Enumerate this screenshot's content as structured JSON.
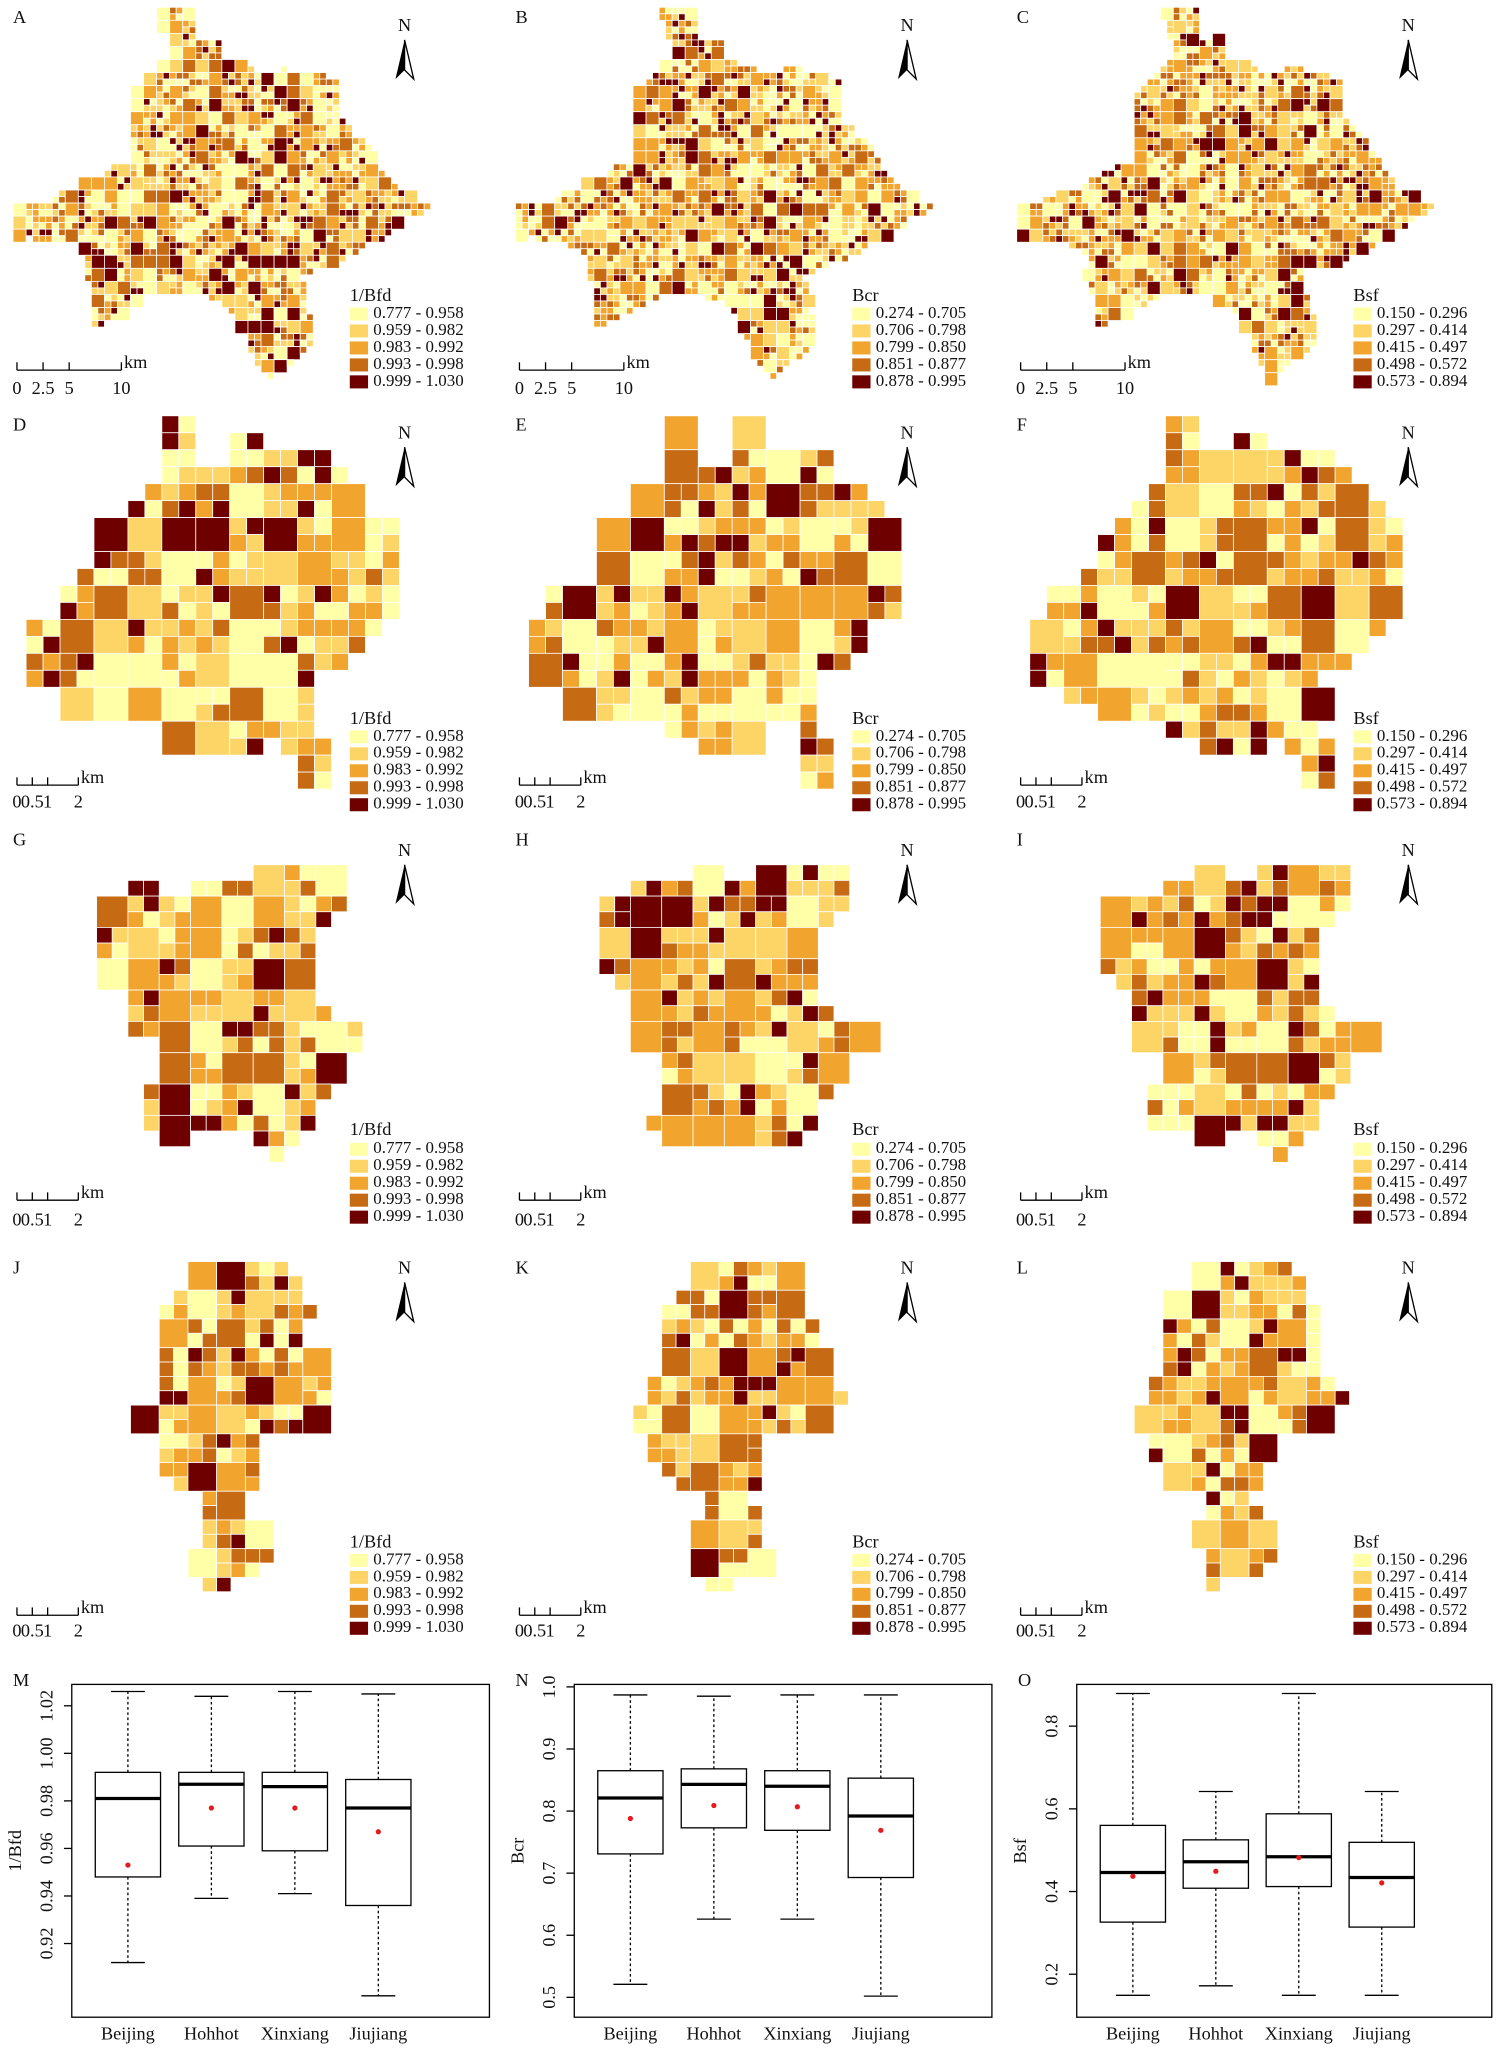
{
  "chart_data": [
    {
      "type": "map",
      "panel": "A",
      "north": "N",
      "legend_title": "1/Bfd",
      "legend_labels": [
        "0.777 - 0.958",
        "0.959 - 0.982",
        "0.983 - 0.992",
        "0.993 - 0.998",
        "0.999 - 1.030"
      ],
      "colors": [
        "#ffffa8",
        "#fdd466",
        "#f2a52e",
        "#c66a14",
        "#6e0000"
      ],
      "scale_ticks": [
        0,
        2.5,
        5,
        10
      ],
      "scale_unit": "km"
    },
    {
      "type": "map",
      "panel": "B",
      "north": "N",
      "legend_title": "Bcr",
      "legend_labels": [
        "0.274 - 0.705",
        "0.706 - 0.798",
        "0.799 - 0.850",
        "0.851 - 0.877",
        "0.878 - 0.995"
      ],
      "colors": [
        "#ffffa8",
        "#fdd466",
        "#f2a52e",
        "#c66a14",
        "#6e0000"
      ],
      "scale_ticks": [
        0,
        2.5,
        5,
        10
      ],
      "scale_unit": "km"
    },
    {
      "type": "map",
      "panel": "C",
      "north": "N",
      "legend_title": "Bsf",
      "legend_labels": [
        "0.150 - 0.296",
        "0.297 - 0.414",
        "0.415 - 0.497",
        "0.498 - 0.572",
        "0.573 - 0.894"
      ],
      "colors": [
        "#ffffa8",
        "#fdd466",
        "#f2a52e",
        "#c66a14",
        "#6e0000"
      ],
      "scale_ticks": [
        0,
        2.5,
        5,
        10
      ],
      "scale_unit": "km"
    },
    {
      "type": "map",
      "panel": "D",
      "north": "N",
      "legend_title": "1/Bfd",
      "legend_labels": [
        "0.777 - 0.958",
        "0.959 - 0.982",
        "0.983 - 0.992",
        "0.993 - 0.998",
        "0.999 - 1.030"
      ],
      "colors": [
        "#ffffa8",
        "#fdd466",
        "#f2a52e",
        "#c66a14",
        "#6e0000"
      ],
      "scale_ticks": [
        0,
        0.5,
        1,
        2
      ],
      "scale_unit": "km"
    },
    {
      "type": "map",
      "panel": "E",
      "north": "N",
      "legend_title": "Bcr",
      "legend_labels": [
        "0.274 - 0.705",
        "0.706 - 0.798",
        "0.799 - 0.850",
        "0.851 - 0.877",
        "0.878 - 0.995"
      ],
      "colors": [
        "#ffffa8",
        "#fdd466",
        "#f2a52e",
        "#c66a14",
        "#6e0000"
      ],
      "scale_ticks": [
        0,
        0.5,
        1,
        2
      ],
      "scale_unit": "km"
    },
    {
      "type": "map",
      "panel": "F",
      "north": "N",
      "legend_title": "Bsf",
      "legend_labels": [
        "0.150 - 0.296",
        "0.297 - 0.414",
        "0.415 - 0.497",
        "0.498 - 0.572",
        "0.573 - 0.894"
      ],
      "colors": [
        "#ffffa8",
        "#fdd466",
        "#f2a52e",
        "#c66a14",
        "#6e0000"
      ],
      "scale_ticks": [
        0,
        0.5,
        1,
        2
      ],
      "scale_unit": "km"
    },
    {
      "type": "map",
      "panel": "G",
      "north": "N",
      "legend_title": "1/Bfd",
      "legend_labels": [
        "0.777 - 0.958",
        "0.959 - 0.982",
        "0.983 - 0.992",
        "0.993 - 0.998",
        "0.999 - 1.030"
      ],
      "colors": [
        "#ffffa8",
        "#fdd466",
        "#f2a52e",
        "#c66a14",
        "#6e0000"
      ],
      "scale_ticks": [
        0,
        0.5,
        1,
        2
      ],
      "scale_unit": "km"
    },
    {
      "type": "map",
      "panel": "H",
      "north": "N",
      "legend_title": "Bcr",
      "legend_labels": [
        "0.274 - 0.705",
        "0.706 - 0.798",
        "0.799 - 0.850",
        "0.851 - 0.877",
        "0.878 - 0.995"
      ],
      "colors": [
        "#ffffa8",
        "#fdd466",
        "#f2a52e",
        "#c66a14",
        "#6e0000"
      ],
      "scale_ticks": [
        0,
        0.5,
        1,
        2
      ],
      "scale_unit": "km"
    },
    {
      "type": "map",
      "panel": "I",
      "north": "N",
      "legend_title": "Bsf",
      "legend_labels": [
        "0.150 - 0.296",
        "0.297 - 0.414",
        "0.415 - 0.497",
        "0.498 - 0.572",
        "0.573 - 0.894"
      ],
      "colors": [
        "#ffffa8",
        "#fdd466",
        "#f2a52e",
        "#c66a14",
        "#6e0000"
      ],
      "scale_ticks": [
        0,
        0.5,
        1,
        2
      ],
      "scale_unit": "km"
    },
    {
      "type": "map",
      "panel": "J",
      "north": "N",
      "legend_title": "1/Bfd",
      "legend_labels": [
        "0.777 - 0.958",
        "0.959 - 0.982",
        "0.983 - 0.992",
        "0.993 - 0.998",
        "0.999 - 1.030"
      ],
      "colors": [
        "#ffffa8",
        "#fdd466",
        "#f2a52e",
        "#c66a14",
        "#6e0000"
      ],
      "scale_ticks": [
        0,
        0.5,
        1,
        2
      ],
      "scale_unit": "km"
    },
    {
      "type": "map",
      "panel": "K",
      "north": "N",
      "legend_title": "Bcr",
      "legend_labels": [
        "0.274 - 0.705",
        "0.706 - 0.798",
        "0.799 - 0.850",
        "0.851 - 0.877",
        "0.878 - 0.995"
      ],
      "colors": [
        "#ffffa8",
        "#fdd466",
        "#f2a52e",
        "#c66a14",
        "#6e0000"
      ],
      "scale_ticks": [
        0,
        0.5,
        1,
        2
      ],
      "scale_unit": "km"
    },
    {
      "type": "map",
      "panel": "L",
      "north": "N",
      "legend_title": "Bsf",
      "legend_labels": [
        "0.150 - 0.296",
        "0.297 - 0.414",
        "0.415 - 0.497",
        "0.498 - 0.572",
        "0.573 - 0.894"
      ],
      "colors": [
        "#ffffa8",
        "#fdd466",
        "#f2a52e",
        "#c66a14",
        "#6e0000"
      ],
      "scale_ticks": [
        0,
        0.5,
        1,
        2
      ],
      "scale_unit": "km"
    },
    {
      "type": "box",
      "panel": "M",
      "y_label": "1/Bfd",
      "categories": [
        "Beijing",
        "Hohhot",
        "Xinxiang",
        "Jiujiang"
      ],
      "mean_color": "#e41a1c",
      "ylim": [
        0.889,
        1.029
      ],
      "yticks": [
        0.92,
        0.94,
        0.96,
        0.98,
        {
          "value": 1,
          "label": "1.00"
        },
        1.02
      ],
      "stats": {
        "min": [
          0.912,
          0.939,
          0.941,
          0.898
        ],
        "q1": [
          0.948,
          0.961,
          0.959,
          0.936
        ],
        "median": [
          0.981,
          0.987,
          0.986,
          0.977
        ],
        "q3": [
          0.992,
          0.992,
          0.992,
          0.989
        ],
        "max": [
          1.026,
          1.024,
          1.026,
          1.025
        ],
        "mean": [
          0.953,
          0.977,
          0.977,
          0.967
        ]
      }
    },
    {
      "type": "box",
      "panel": "N",
      "y_label": "Bcr",
      "categories": [
        "Beijing",
        "Hohhot",
        "Xinxiang",
        "Jiujiang"
      ],
      "mean_color": "#e41a1c",
      "ylim": [
        0.468,
        1.004
      ],
      "yticks": [
        0.5,
        0.6,
        0.7,
        0.8,
        0.9,
        {
          "value": 1,
          "label": "1.0"
        }
      ],
      "stats": {
        "min": [
          0.521,
          0.626,
          0.626,
          0.502
        ],
        "q1": [
          0.731,
          0.773,
          0.769,
          0.693
        ],
        "median": [
          0.821,
          0.843,
          0.84,
          0.792
        ],
        "q3": [
          0.865,
          0.868,
          0.865,
          0.853
        ],
        "max": [
          0.987,
          0.985,
          0.987,
          0.987
        ],
        "mean": [
          0.788,
          0.809,
          0.807,
          0.769
        ]
      }
    },
    {
      "type": "box",
      "panel": "O",
      "y_label": "Bsf",
      "categories": [
        "Beijing",
        "Hohhot",
        "Xinxiang",
        "Jiujiang"
      ],
      "mean_color": "#e41a1c",
      "ylim": [
        0.096,
        0.901
      ],
      "yticks": [
        0.2,
        0.4,
        0.6,
        0.8
      ],
      "stats": {
        "min": [
          0.149,
          0.172,
          0.149,
          0.149
        ],
        "q1": [
          0.326,
          0.408,
          0.412,
          0.314
        ],
        "median": [
          0.446,
          0.472,
          0.484,
          0.434
        ],
        "q3": [
          0.56,
          0.525,
          0.588,
          0.519
        ],
        "max": [
          0.879,
          0.642,
          0.879,
          0.642
        ],
        "mean": [
          0.437,
          0.449,
          0.482,
          0.421
        ]
      }
    }
  ]
}
